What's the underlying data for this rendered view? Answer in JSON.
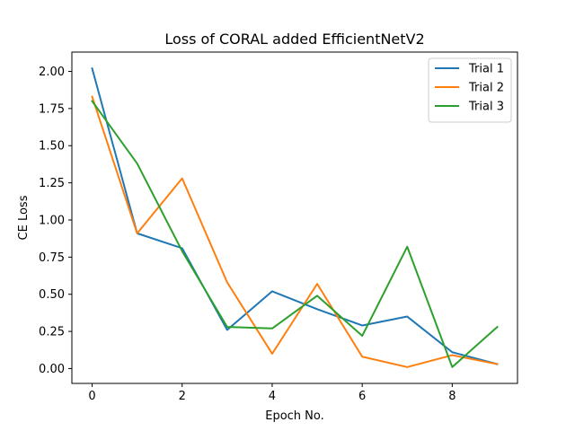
{
  "chart_data": {
    "type": "line",
    "title": "Loss of CORAL added EfficientNetV2",
    "xlabel": "Epoch No.",
    "ylabel": "CE Loss",
    "x": [
      0,
      1,
      2,
      3,
      4,
      5,
      6,
      7,
      8,
      9
    ],
    "xlim": [
      -0.45,
      9.45
    ],
    "ylim": [
      -0.1,
      2.13
    ],
    "xticks": [
      0,
      2,
      4,
      6,
      8
    ],
    "yticks": [
      0.0,
      0.25,
      0.5,
      0.75,
      1.0,
      1.25,
      1.5,
      1.75,
      2.0
    ],
    "grid": false,
    "legend_position": "top-right",
    "series": [
      {
        "name": "Trial 1",
        "color": "#1f77b4",
        "values": [
          2.02,
          0.91,
          0.81,
          0.26,
          0.52,
          0.4,
          0.29,
          0.35,
          0.11,
          0.03
        ]
      },
      {
        "name": "Trial 2",
        "color": "#ff7f0e",
        "values": [
          1.83,
          0.91,
          1.28,
          0.58,
          0.1,
          0.57,
          0.08,
          0.01,
          0.09,
          0.03
        ]
      },
      {
        "name": "Trial 3",
        "color": "#2ca02c",
        "values": [
          1.8,
          1.38,
          0.79,
          0.28,
          0.27,
          0.49,
          0.22,
          0.82,
          0.01,
          0.28
        ]
      }
    ]
  }
}
